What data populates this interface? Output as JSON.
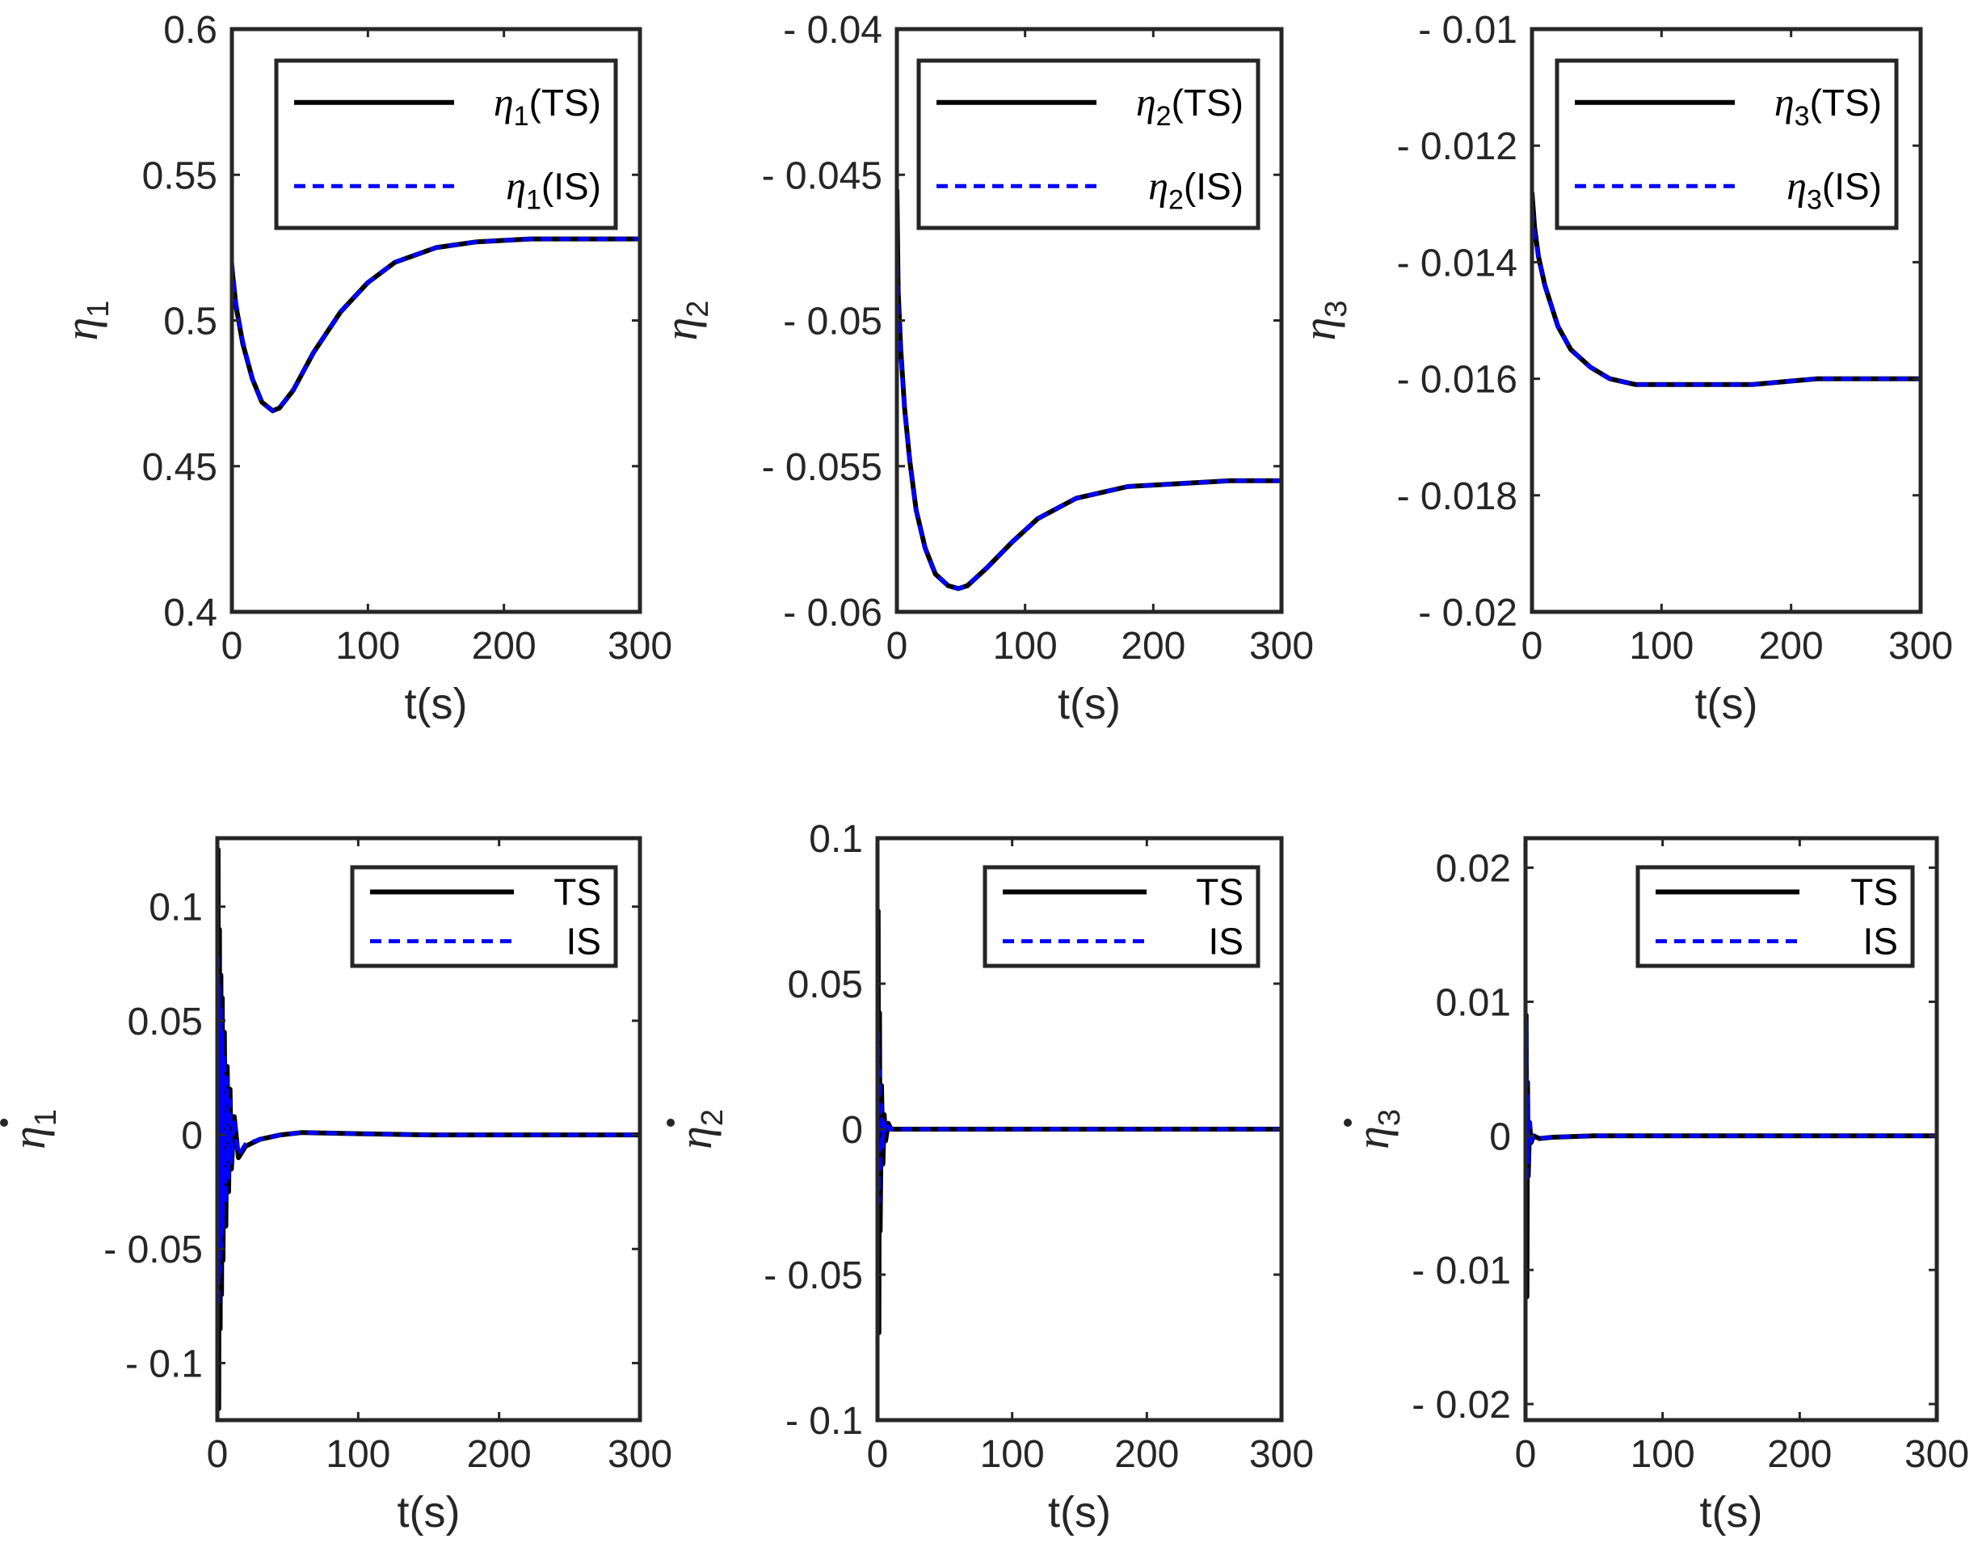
{
  "colors": {
    "ts": "#000000",
    "is": "#0000ff",
    "axis": "#262626"
  },
  "chart_data": [
    {
      "type": "line",
      "xlabel": "t(s)",
      "ylabel": {
        "symbol": "η",
        "sub": "1",
        "dot": false
      },
      "xlim": [
        0,
        300
      ],
      "ylim": [
        0.4,
        0.6
      ],
      "xticks": [
        0,
        100,
        200,
        300
      ],
      "xtick_labels": [
        "0",
        "100",
        "200",
        "300"
      ],
      "yticks": [
        0.4,
        0.45,
        0.5,
        0.55,
        0.6
      ],
      "ytick_labels": [
        "0.4",
        "0.45",
        "0.5",
        "0.55",
        "0.6"
      ],
      "legend": {
        "position": "top-right",
        "entries": [
          {
            "symbol": "η",
            "sub": "1",
            "suffix": "(TS)",
            "style": "solid"
          },
          {
            "symbol": "η",
            "sub": "1",
            "suffix": "(IS)",
            "style": "dashed"
          }
        ]
      },
      "series": [
        {
          "name": "η1(TS)",
          "x": [
            0,
            3,
            8,
            15,
            22,
            30,
            35,
            45,
            60,
            80,
            100,
            120,
            150,
            180,
            220,
            260,
            300
          ],
          "y": [
            0.518,
            0.505,
            0.492,
            0.48,
            0.472,
            0.469,
            0.47,
            0.476,
            0.489,
            0.503,
            0.513,
            0.52,
            0.525,
            0.527,
            0.528,
            0.528,
            0.528
          ]
        },
        {
          "name": "η1(IS)",
          "x": [
            0,
            3,
            8,
            15,
            22,
            30,
            35,
            45,
            60,
            80,
            100,
            120,
            150,
            180,
            220,
            260,
            300
          ],
          "y": [
            0.52,
            0.506,
            0.493,
            0.48,
            0.472,
            0.469,
            0.47,
            0.476,
            0.489,
            0.503,
            0.513,
            0.52,
            0.525,
            0.527,
            0.528,
            0.528,
            0.528
          ]
        }
      ]
    },
    {
      "type": "line",
      "xlabel": "t(s)",
      "ylabel": {
        "symbol": "η",
        "sub": "2",
        "dot": false
      },
      "xlim": [
        0,
        300
      ],
      "ylim": [
        -0.06,
        -0.04
      ],
      "xticks": [
        0,
        100,
        200,
        300
      ],
      "xtick_labels": [
        "0",
        "100",
        "200",
        "300"
      ],
      "yticks": [
        -0.06,
        -0.055,
        -0.05,
        -0.045,
        -0.04
      ],
      "ytick_labels": [
        "- 0.06",
        "- 0.055",
        "- 0.05",
        "- 0.045",
        "- 0.04"
      ],
      "legend": {
        "position": "top-right",
        "entries": [
          {
            "symbol": "η",
            "sub": "2",
            "suffix": "(TS)",
            "style": "solid"
          },
          {
            "symbol": "η",
            "sub": "2",
            "suffix": "(IS)",
            "style": "dashed"
          }
        ]
      },
      "series": [
        {
          "name": "η2(TS)",
          "x": [
            0,
            1,
            3,
            6,
            10,
            15,
            22,
            30,
            40,
            48,
            55,
            70,
            90,
            110,
            140,
            180,
            220,
            260,
            300
          ],
          "y": [
            -0.0455,
            -0.049,
            -0.051,
            -0.053,
            -0.0548,
            -0.0565,
            -0.0578,
            -0.0587,
            -0.0591,
            -0.0592,
            -0.0591,
            -0.0585,
            -0.0576,
            -0.0568,
            -0.0561,
            -0.0557,
            -0.0556,
            -0.0555,
            -0.0555
          ]
        },
        {
          "name": "η2(IS)",
          "x": [
            0,
            1,
            3,
            6,
            10,
            15,
            22,
            30,
            40,
            48,
            55,
            70,
            90,
            110,
            140,
            180,
            220,
            260,
            300
          ],
          "y": [
            -0.0475,
            -0.0495,
            -0.0512,
            -0.053,
            -0.0548,
            -0.0565,
            -0.0578,
            -0.0587,
            -0.0591,
            -0.0592,
            -0.0591,
            -0.0585,
            -0.0576,
            -0.0568,
            -0.0561,
            -0.0557,
            -0.0556,
            -0.0555,
            -0.0555
          ]
        }
      ]
    },
    {
      "type": "line",
      "xlabel": "t(s)",
      "ylabel": {
        "symbol": "η",
        "sub": "3",
        "dot": false
      },
      "xlim": [
        0,
        300
      ],
      "ylim": [
        -0.02,
        -0.01
      ],
      "xticks": [
        0,
        100,
        200,
        300
      ],
      "xtick_labels": [
        "0",
        "100",
        "200",
        "300"
      ],
      "yticks": [
        -0.02,
        -0.018,
        -0.016,
        -0.014,
        -0.012,
        -0.01
      ],
      "ytick_labels": [
        "- 0.02",
        "- 0.018",
        "- 0.016",
        "- 0.014",
        "- 0.012",
        "- 0.01"
      ],
      "legend": {
        "position": "top-right",
        "entries": [
          {
            "symbol": "η",
            "sub": "3",
            "suffix": "(TS)",
            "style": "solid"
          },
          {
            "symbol": "η",
            "sub": "3",
            "suffix": "(IS)",
            "style": "dashed"
          }
        ]
      },
      "series": [
        {
          "name": "η3(TS)",
          "x": [
            0,
            2,
            5,
            10,
            20,
            30,
            45,
            60,
            80,
            100,
            130,
            170,
            220,
            260,
            300
          ],
          "y": [
            -0.0128,
            -0.0134,
            -0.0139,
            -0.0144,
            -0.0151,
            -0.0155,
            -0.0158,
            -0.016,
            -0.0161,
            -0.0161,
            -0.0161,
            -0.0161,
            -0.016,
            -0.016,
            -0.016
          ]
        },
        {
          "name": "η3(IS)",
          "x": [
            0,
            2,
            5,
            10,
            20,
            30,
            45,
            60,
            80,
            100,
            130,
            170,
            220,
            260,
            300
          ],
          "y": [
            -0.0131,
            -0.0135,
            -0.0139,
            -0.0144,
            -0.0151,
            -0.0155,
            -0.0158,
            -0.016,
            -0.0161,
            -0.0161,
            -0.0161,
            -0.0161,
            -0.016,
            -0.016,
            -0.016
          ]
        }
      ]
    },
    {
      "type": "line",
      "xlabel": "t(s)",
      "ylabel": {
        "symbol": "η",
        "sub": "1",
        "dot": true
      },
      "xlim": [
        0,
        300
      ],
      "ylim": [
        -0.125,
        0.13
      ],
      "xticks": [
        0,
        100,
        200,
        300
      ],
      "xtick_labels": [
        "0",
        "100",
        "200",
        "300"
      ],
      "yticks": [
        -0.1,
        -0.05,
        0,
        0.05,
        0.1
      ],
      "ytick_labels": [
        "- 0.1",
        "- 0.05",
        "0",
        "0.05",
        "0.1"
      ],
      "legend": {
        "position": "top-right",
        "entries": [
          {
            "text": "TS",
            "style": "solid"
          },
          {
            "text": "IS",
            "style": "dashed"
          }
        ]
      },
      "series": [
        {
          "name": "TS",
          "x": [
            0,
            0.5,
            1,
            1.5,
            2,
            2.5,
            3,
            3.5,
            4,
            5,
            6,
            7,
            8,
            9,
            10,
            12,
            15,
            20,
            30,
            45,
            60,
            100,
            150,
            200,
            300
          ],
          "y": [
            0,
            0.125,
            -0.12,
            0.09,
            -0.085,
            0.07,
            -0.07,
            0.06,
            -0.055,
            0.045,
            -0.04,
            0.03,
            -0.025,
            0.02,
            -0.015,
            0.008,
            -0.01,
            -0.005,
            -0.002,
            0,
            0.001,
            0.0005,
            0,
            0,
            0
          ]
        },
        {
          "name": "IS",
          "x": [
            0,
            0.5,
            1,
            1.5,
            2,
            2.5,
            3,
            3.5,
            4,
            5,
            6,
            7,
            8,
            9,
            10,
            12,
            15,
            20,
            30,
            45,
            60,
            100,
            150,
            200,
            300
          ],
          "y": [
            0,
            0.08,
            -0.075,
            0.065,
            -0.06,
            0.055,
            -0.05,
            0.045,
            -0.04,
            0.035,
            -0.03,
            0.025,
            -0.02,
            0.015,
            -0.012,
            0.007,
            -0.009,
            -0.004,
            -0.002,
            0,
            0.001,
            0.0005,
            0,
            0,
            0
          ]
        }
      ]
    },
    {
      "type": "line",
      "xlabel": "t(s)",
      "ylabel": {
        "symbol": "η",
        "sub": "2",
        "dot": true
      },
      "xlim": [
        0,
        300
      ],
      "ylim": [
        -0.1,
        0.1
      ],
      "xticks": [
        0,
        100,
        200,
        300
      ],
      "xtick_labels": [
        "0",
        "100",
        "200",
        "300"
      ],
      "yticks": [
        -0.1,
        -0.05,
        0,
        0.05,
        0.1
      ],
      "ytick_labels": [
        "- 0.1",
        "- 0.05",
        "0",
        "0.05",
        "0.1"
      ],
      "legend": {
        "position": "top-right",
        "entries": [
          {
            "text": "TS",
            "style": "solid"
          },
          {
            "text": "IS",
            "style": "dashed"
          }
        ]
      },
      "series": [
        {
          "name": "TS",
          "x": [
            0,
            0.5,
            1,
            1.5,
            2,
            3,
            4,
            5,
            6,
            8,
            10,
            20,
            50,
            100,
            300
          ],
          "y": [
            0,
            0.075,
            -0.07,
            0.04,
            -0.035,
            0.015,
            -0.012,
            0.005,
            -0.004,
            0.002,
            0,
            0,
            0,
            0,
            0
          ]
        },
        {
          "name": "IS",
          "x": [
            0,
            0.5,
            1,
            1.5,
            2,
            3,
            4,
            5,
            6,
            8,
            10,
            20,
            50,
            100,
            300
          ],
          "y": [
            0,
            0.033,
            -0.025,
            0.02,
            -0.015,
            0.008,
            -0.006,
            0.003,
            -0.002,
            0.001,
            0,
            0,
            0,
            0,
            0
          ]
        }
      ]
    },
    {
      "type": "line",
      "xlabel": "t(s)",
      "ylabel": {
        "symbol": "η",
        "sub": "3",
        "dot": true
      },
      "xlim": [
        0,
        300
      ],
      "ylim": [
        -0.0212,
        0.0222
      ],
      "xticks": [
        0,
        100,
        200,
        300
      ],
      "xtick_labels": [
        "0",
        "100",
        "200",
        "300"
      ],
      "yticks": [
        -0.02,
        -0.01,
        0,
        0.01,
        0.02
      ],
      "ytick_labels": [
        "- 0.02",
        "- 0.01",
        "0",
        "0.01",
        "0.02"
      ],
      "legend": {
        "position": "top-right",
        "entries": [
          {
            "text": "TS",
            "style": "solid"
          },
          {
            "text": "IS",
            "style": "dashed"
          }
        ]
      },
      "series": [
        {
          "name": "TS",
          "x": [
            0,
            0.5,
            1,
            1.5,
            2,
            3,
            4,
            6,
            10,
            20,
            50,
            100,
            300
          ],
          "y": [
            0,
            0.009,
            -0.012,
            0.004,
            -0.003,
            0.001,
            -0.0005,
            0,
            -0.0002,
            -0.0001,
            0,
            0,
            0
          ]
        },
        {
          "name": "IS",
          "x": [
            0,
            0.5,
            1,
            1.5,
            2,
            3,
            4,
            6,
            10,
            20,
            50,
            100,
            300
          ],
          "y": [
            0,
            0.0085,
            -0.0035,
            0.003,
            -0.002,
            0.001,
            -0.0004,
            0,
            -0.0002,
            -0.0001,
            0,
            0,
            0
          ]
        }
      ]
    }
  ]
}
